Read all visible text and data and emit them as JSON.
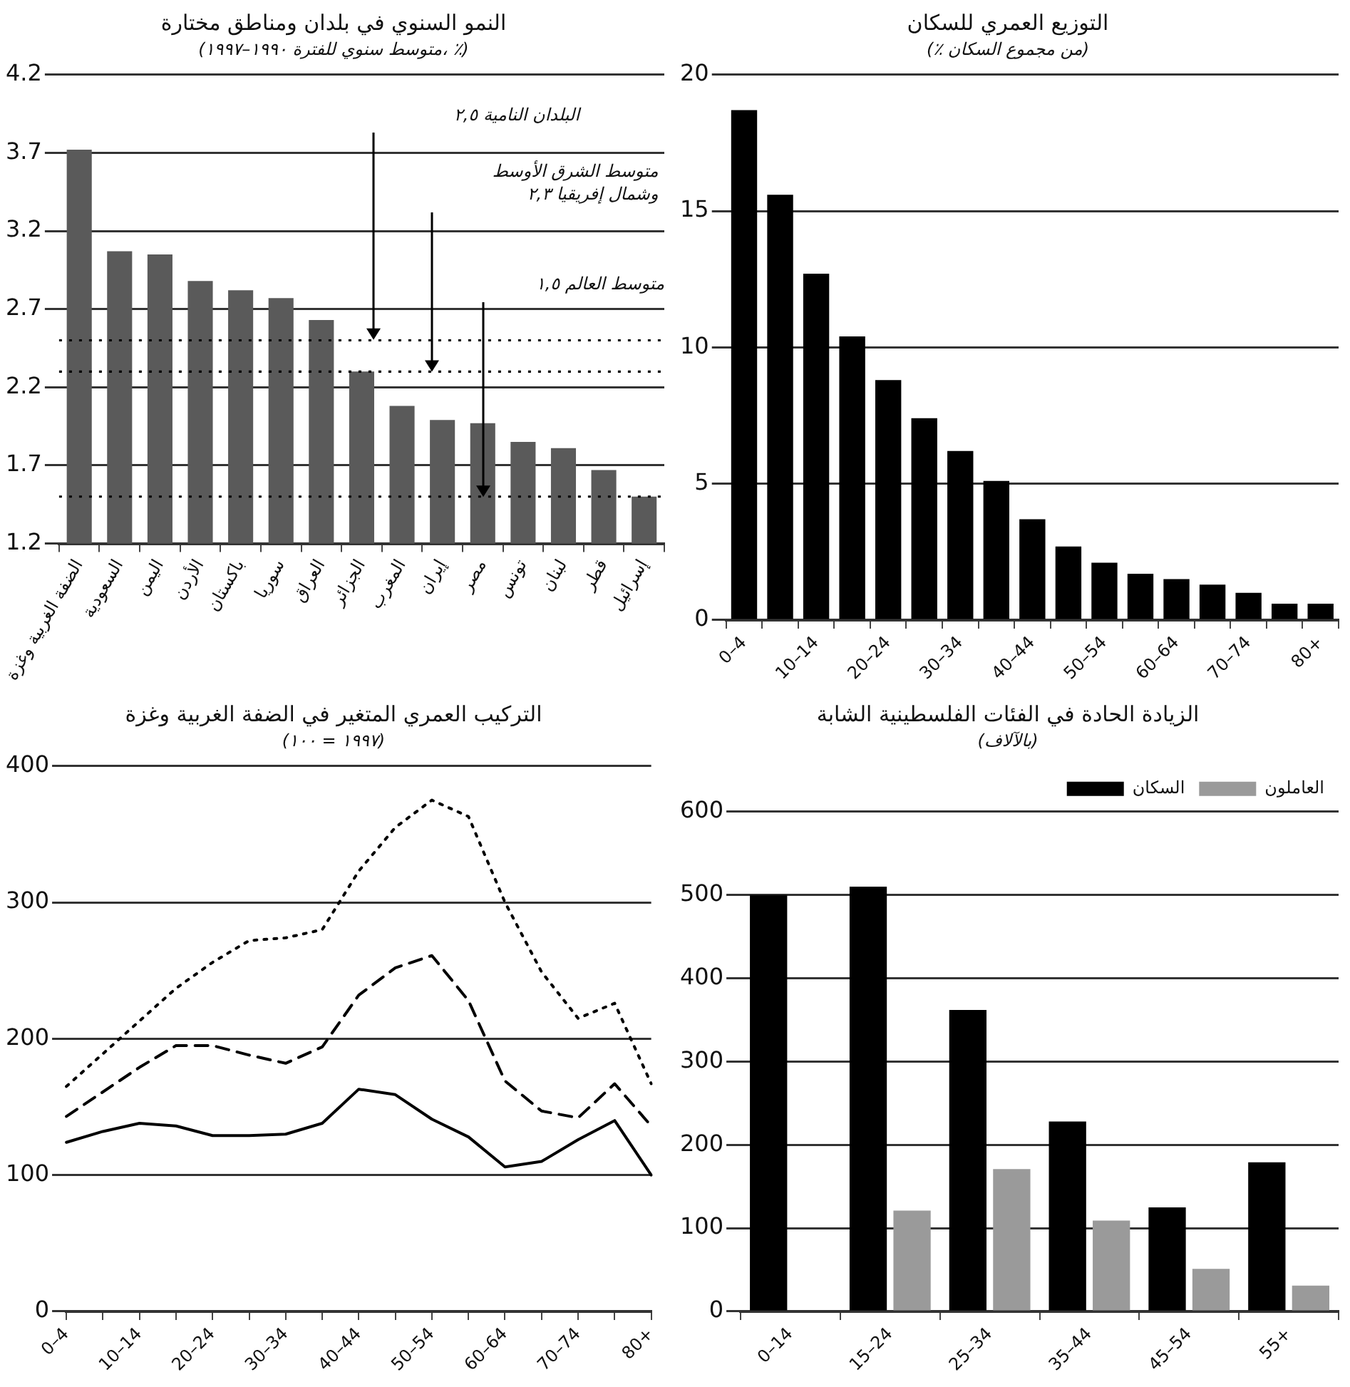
{
  "chart_data": [
    {
      "type": "bar",
      "title": "النمو السنوي في بلدان ومناطق مختارة",
      "subtitle": "(متوسط سنوي للفترة ١٩٩٠–١٩٩٧، ٪)",
      "categories": [
        "الضفة الغربية وغزة",
        "السعودية",
        "اليمن",
        "الأردن",
        "باكستان",
        "سوريا",
        "العراق",
        "الجزائر",
        "المغرب",
        "إيران",
        "مصر",
        "تونس",
        "لبنان",
        "قطر",
        "إسرائيل"
      ],
      "values": [
        3.72,
        3.07,
        3.05,
        2.88,
        2.82,
        2.77,
        2.63,
        2.3,
        2.08,
        1.99,
        1.97,
        1.85,
        1.81,
        1.67,
        1.5
      ],
      "color": "#5a5a5a",
      "ylim": [
        1.2,
        4.2
      ],
      "yticks": [
        1.2,
        1.7,
        2.2,
        2.7,
        3.2,
        3.7,
        4.2
      ],
      "grid": "y",
      "annotations": [
        "البلدان النامية ٢,٥",
        "متوسط الشرق الأوسط وشمال إفريقيا ٢,٣",
        "متوسط العالم ١,٥"
      ],
      "ref_lines": [
        {
          "axis": "y",
          "value": 2.5,
          "line_style": "dotted",
          "color": "#000000"
        },
        {
          "axis": "y",
          "value": 2.3,
          "line_style": "dotted",
          "color": "#000000"
        },
        {
          "axis": "y",
          "value": 1.5,
          "line_style": "dotted",
          "color": "#000000"
        }
      ]
    },
    {
      "type": "bar",
      "title": "التوزيع العمري للسكان",
      "subtitle": "(٪ من مجموع السكان)",
      "categories": [
        "0–4",
        null,
        "10–14",
        null,
        "20–24",
        null,
        "30–34",
        null,
        "40–44",
        null,
        "50–54",
        null,
        "60–64",
        null,
        "70–74",
        null,
        "80+"
      ],
      "values": [
        18.7,
        15.6,
        12.7,
        10.4,
        8.8,
        7.4,
        6.2,
        5.1,
        3.7,
        2.7,
        2.1,
        1.7,
        1.5,
        1.3,
        1.0,
        0.6,
        0.6
      ],
      "color": "#000000",
      "ylim": [
        0,
        20
      ],
      "yticks": [
        0,
        5,
        10,
        15,
        20
      ],
      "grid": "y"
    },
    {
      "type": "line",
      "title": "التركيب العمري المتغير في الضفة الغربية وغزة",
      "subtitle": "(١٩٩٧ = ١٠٠)",
      "categories": [
        "0–4",
        null,
        "10–14",
        null,
        "20–24",
        null,
        "30–34",
        null,
        "40–44",
        null,
        "50–54",
        null,
        "60–64",
        null,
        "70–74",
        null,
        "80+"
      ],
      "series": [
        {
          "color": "#000000",
          "line_style": "solid",
          "values": [
            124,
            132,
            138,
            136,
            129,
            129,
            130,
            138,
            163,
            159,
            141,
            128,
            106,
            110,
            126,
            140,
            100
          ]
        },
        {
          "color": "#000000",
          "line_style": "dashed",
          "values": [
            143,
            161,
            179,
            195,
            195,
            188,
            182,
            194,
            232,
            252,
            261,
            228,
            169,
            147,
            142,
            167,
            136
          ]
        },
        {
          "color": "#000000",
          "line_style": "dotted",
          "values": [
            165,
            189,
            213,
            237,
            256,
            272,
            274,
            280,
            323,
            355,
            375,
            363,
            300,
            249,
            215,
            226,
            167
          ]
        }
      ],
      "marker": "none",
      "ylim": [
        0,
        400
      ],
      "yticks": [
        0,
        100,
        200,
        300,
        400
      ],
      "grid": "y"
    },
    {
      "type": "bar",
      "title": "الزيادة الحادة في الفئات الفلسطينية الشابة",
      "subtitle": "(بالآلاف)",
      "categories": [
        "0–14",
        "15–24",
        "25–34",
        "35–44",
        "45–54",
        "55+"
      ],
      "series": [
        {
          "name": "السكان",
          "color": "#000000",
          "values": [
            500,
            510,
            362,
            228,
            125,
            179
          ]
        },
        {
          "name": "العاملون",
          "color": "#9a9a9a",
          "values": [
            null,
            121,
            171,
            109,
            51,
            31
          ]
        }
      ],
      "ylim": [
        0,
        600
      ],
      "yticks": [
        0,
        100,
        200,
        300,
        400,
        500,
        600
      ],
      "grid": "y",
      "legend": "top right"
    }
  ]
}
